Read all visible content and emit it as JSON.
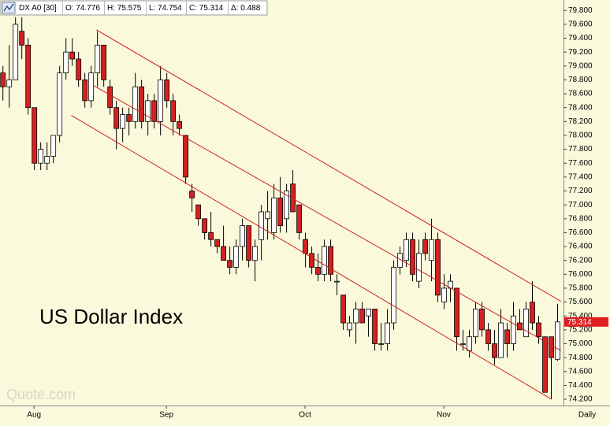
{
  "header": {
    "symbol": "DX A0 [30]",
    "open": "O: 74.776",
    "high": "H: 75.575",
    "low": "L: 74.754",
    "close": "C: 75.314",
    "change": "Δ: 0.488"
  },
  "chart_data": {
    "type": "candlestick",
    "title": "US Dollar Index",
    "watermark": "Quote.com",
    "interval": "Daily",
    "up_color": "#ffffff",
    "down_color": "#d42020",
    "line_color": "#cc2020",
    "xlim": [
      -0.4,
      89
    ],
    "ylim": [
      74.11,
      79.95
    ],
    "xticks": [
      {
        "value": 5,
        "label": "Aug"
      },
      {
        "value": 26,
        "label": "Sep"
      },
      {
        "value": 48,
        "label": "Oct"
      },
      {
        "value": 70,
        "label": "Nov"
      }
    ],
    "yticks": [
      {
        "value": 74.2,
        "label": "74.200"
      },
      {
        "value": 74.4,
        "label": "74.400"
      },
      {
        "value": 74.6,
        "label": "74.600"
      },
      {
        "value": 74.8,
        "label": "74.800"
      },
      {
        "value": 75.0,
        "label": "75.000"
      },
      {
        "value": 75.2,
        "label": "75.200"
      },
      {
        "value": 75.4,
        "label": "75.400"
      },
      {
        "value": 75.6,
        "label": "75.600"
      },
      {
        "value": 75.8,
        "label": "75.800"
      },
      {
        "value": 76.0,
        "label": "76.000"
      },
      {
        "value": 76.2,
        "label": "76.200"
      },
      {
        "value": 76.4,
        "label": "76.400"
      },
      {
        "value": 76.6,
        "label": "76.600"
      },
      {
        "value": 76.8,
        "label": "76.800"
      },
      {
        "value": 77.0,
        "label": "77.000"
      },
      {
        "value": 77.2,
        "label": "77.200"
      },
      {
        "value": 77.4,
        "label": "77.400"
      },
      {
        "value": 77.6,
        "label": "77.600"
      },
      {
        "value": 77.8,
        "label": "77.800"
      },
      {
        "value": 78.0,
        "label": "78.000"
      },
      {
        "value": 78.2,
        "label": "78.200"
      },
      {
        "value": 78.4,
        "label": "78.400"
      },
      {
        "value": 78.6,
        "label": "78.600"
      },
      {
        "value": 78.8,
        "label": "78.800"
      },
      {
        "value": 79.0,
        "label": "79.000"
      },
      {
        "value": 79.2,
        "label": "79.200"
      },
      {
        "value": 79.4,
        "label": "79.400"
      },
      {
        "value": 79.6,
        "label": "79.600"
      },
      {
        "value": 79.8,
        "label": "79.800"
      }
    ],
    "price_marker": {
      "value": 75.314,
      "label": "75.314",
      "color": "#e02020"
    },
    "open": [
      78.9,
      78.7,
      78.8,
      79.5,
      79.3,
      78.4,
      77.6,
      77.6,
      77.7,
      78.0,
      78.9,
      79.2,
      79.1,
      78.8,
      78.5,
      78.9,
      79.3,
      78.7,
      78.4,
      78.1,
      78.3,
      78.2,
      78.7,
      78.2,
      78.5,
      78.2,
      78.8,
      78.5,
      78.2,
      78.0,
      77.2,
      77.0,
      76.8,
      76.6,
      76.5,
      76.4,
      76.2,
      76.1,
      76.4,
      76.7,
      76.2,
      76.5,
      76.8,
      76.6,
      77.1,
      76.8,
      77.3,
      77.0,
      76.5,
      76.3,
      76.1,
      76.0,
      76.4,
      75.9,
      75.7,
      75.2,
      75.3,
      75.5,
      75.4,
      75.5,
      75.0,
      75.0,
      75.3,
      76.1,
      76.2,
      76.5,
      75.9,
      76.5,
      76.2,
      76.5,
      75.6,
      75.8,
      75.8,
      75.0,
      74.9,
      75.1,
      75.5,
      75.2,
      75.0,
      74.8,
      75.2,
      75.0,
      75.3,
      75.1,
      75.6,
      75.3,
      75.1,
      75.1,
      74.776
    ],
    "high": [
      79.0,
      79.3,
      79.7,
      79.7,
      79.4,
      78.4,
      77.9,
      77.9,
      78.0,
      79.0,
      79.4,
      79.4,
      79.2,
      78.9,
      79.0,
      79.5,
      79.3,
      78.8,
      78.5,
      78.4,
      78.4,
      78.9,
      78.8,
      78.6,
      78.6,
      79.0,
      78.9,
      78.6,
      78.3,
      78.0,
      77.3,
      77.0,
      76.8,
      76.9,
      76.5,
      76.7,
      76.4,
      76.5,
      76.8,
      76.7,
      76.5,
      77.0,
      77.2,
      77.3,
      77.4,
      77.3,
      77.5,
      77.0,
      76.6,
      76.4,
      76.3,
      76.5,
      76.5,
      76.0,
      75.7,
      75.4,
      75.6,
      75.6,
      75.5,
      75.5,
      75.3,
      75.5,
      76.2,
      76.4,
      76.6,
      76.6,
      76.5,
      76.6,
      76.8,
      76.6,
      76.0,
      76.0,
      75.8,
      75.2,
      75.2,
      75.6,
      75.6,
      75.3,
      75.2,
      75.5,
      75.3,
      75.6,
      75.5,
      75.6,
      75.9,
      75.4,
      75.1,
      75.1,
      75.575
    ],
    "low": [
      78.5,
      78.4,
      78.8,
      79.1,
      78.3,
      77.5,
      77.5,
      77.5,
      77.6,
      77.9,
      78.8,
      79.0,
      78.7,
      78.4,
      78.4,
      78.7,
      78.7,
      78.3,
      77.8,
      77.9,
      78.0,
      78.1,
      78.1,
      78.0,
      78.1,
      78.0,
      78.4,
      78.0,
      78.0,
      77.3,
      76.9,
      76.7,
      76.5,
      76.4,
      76.3,
      76.2,
      76.0,
      76.0,
      76.2,
      76.1,
      75.9,
      76.2,
      76.5,
      76.5,
      76.6,
      76.6,
      76.9,
      76.5,
      76.1,
      76.0,
      75.9,
      75.9,
      75.9,
      75.7,
      75.2,
      75.1,
      75.0,
      75.3,
      75.1,
      74.9,
      74.9,
      74.9,
      75.2,
      76.0,
      76.1,
      75.9,
      75.8,
      76.2,
      75.9,
      75.6,
      75.5,
      75.6,
      74.9,
      74.9,
      74.8,
      75.0,
      75.1,
      74.9,
      74.7,
      74.8,
      74.8,
      74.9,
      75.2,
      75.1,
      75.2,
      75.0,
      74.3,
      74.2,
      74.754
    ],
    "close": [
      78.7,
      78.8,
      79.6,
      79.3,
      78.4,
      77.6,
      77.8,
      77.7,
      78.0,
      78.9,
      79.2,
      79.1,
      78.8,
      78.5,
      78.9,
      79.3,
      78.8,
      78.4,
      78.1,
      78.3,
      78.2,
      78.7,
      78.2,
      78.5,
      78.2,
      78.8,
      78.5,
      78.2,
      78.1,
      77.4,
      77.1,
      76.8,
      76.6,
      76.5,
      76.4,
      76.2,
      76.1,
      76.4,
      76.7,
      76.2,
      76.4,
      76.9,
      76.9,
      77.1,
      76.7,
      77.2,
      76.9,
      76.6,
      76.3,
      76.1,
      76.0,
      76.4,
      76.0,
      75.9,
      75.3,
      75.3,
      75.5,
      75.3,
      75.5,
      75.0,
      75.0,
      75.3,
      76.1,
      76.3,
      76.5,
      76.0,
      76.3,
      76.3,
      76.5,
      75.7,
      75.8,
      75.9,
      75.1,
      75.0,
      75.1,
      75.5,
      75.2,
      75.0,
      74.8,
      75.3,
      75.0,
      75.4,
      75.2,
      75.5,
      75.3,
      75.1,
      74.3,
      74.8,
      75.314
    ],
    "trendlines": [
      {
        "x": [
          14.9,
          88.6
        ],
        "y": [
          79.52,
          75.61
        ]
      },
      {
        "x": [
          14.4,
          88.6
        ],
        "y": [
          78.72,
          74.9
        ]
      },
      {
        "x": [
          10.9,
          87.1
        ],
        "y": [
          78.29,
          74.2
        ]
      }
    ]
  }
}
